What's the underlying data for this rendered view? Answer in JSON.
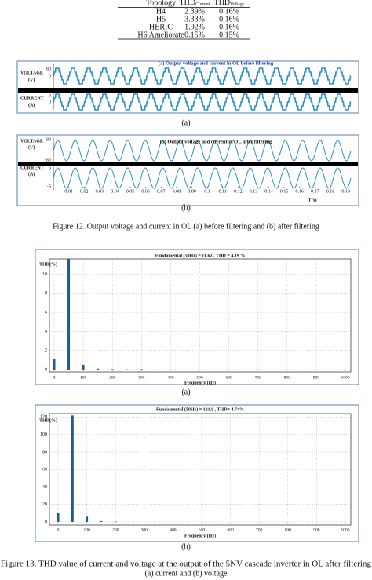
{
  "table": {
    "headers": [
      "Topology",
      {
        "text": "THD",
        "sub": "Current"
      },
      {
        "text": "THD",
        "sub": "Voltage"
      }
    ],
    "rows": [
      [
        "H4",
        "2.39%",
        "0.16%"
      ],
      [
        "H5",
        "3.33%",
        "0.16%"
      ],
      [
        "HERIC",
        "1.92%",
        "0.16%"
      ],
      [
        "H6 Ameliorate",
        "0.15%",
        "0.15%"
      ]
    ]
  },
  "figure12": {
    "panels": [
      {
        "label": "(a)",
        "title": "(a) Output voltage and current in OL before filtering",
        "voltage_label": "VOLTAGE",
        "voltage_unit": "(V)",
        "current_label": "CURRENT",
        "current_unit": "(A)",
        "voltage_ticks": [
          "80",
          "0"
        ],
        "current_ticks": [
          "5",
          "0"
        ]
      },
      {
        "label": "(b)",
        "title": "(b) Output voltage and current in OL after filtering",
        "voltage_label": "VOLTAGE",
        "voltage_unit": "(V)",
        "current_label": "CURRENT",
        "current_unit": "(A)",
        "voltage_ticks": [
          "80",
          "-80"
        ],
        "current_ticks": [
          "5",
          "-5"
        ],
        "xticks": [
          0.01,
          0.02,
          0.03,
          0.04,
          0.05,
          0.06,
          0.07,
          0.08,
          0.09,
          0.1,
          0.11,
          0.12,
          0.13,
          0.14,
          0.15,
          0.16,
          0.17,
          0.18,
          0.19
        ],
        "xlabel": "T(s)"
      }
    ],
    "caption": "Figure 12. Output voltage and current in OL (a) before filtering and (b) after filtering"
  },
  "figure13": {
    "panels": [
      {
        "label": "(a)",
        "title": "Fundamental (50Hz) = 11.62 , THD = 4.19 %",
        "ylabel": "THD(%)",
        "xlabel": "Frequency (Hz)",
        "xlim": [
          0,
          1000
        ],
        "xticks": [
          0,
          100,
          200,
          300,
          400,
          500,
          600,
          700,
          800,
          900,
          1000
        ],
        "ylim": [
          0,
          11.6
        ],
        "yticks": [
          0,
          2,
          4,
          6,
          8,
          10
        ],
        "harmonics": [
          0,
          50,
          100,
          150,
          200,
          250,
          300
        ],
        "values": [
          1.1,
          11.62,
          0.5,
          0.1,
          0.05,
          0.03,
          0.05
        ]
      },
      {
        "label": "(b)",
        "title": "Fundamental (50Hz) = 121.8 , THD= 4.74%",
        "ylabel": "THD(%)",
        "xlabel": "Frequency (Hz)",
        "xlim": [
          0,
          1000
        ],
        "xticks": [
          0,
          100,
          200,
          300,
          400,
          500,
          600,
          700,
          800,
          900,
          1000
        ],
        "ylim": [
          0,
          123
        ],
        "yticks": [
          0,
          20,
          40,
          60,
          80,
          100,
          120
        ],
        "harmonics": [
          0,
          50,
          100,
          150,
          200
        ],
        "values": [
          10,
          121.8,
          6,
          1,
          0.5
        ]
      }
    ],
    "caption": [
      "Figure 13. THD value of current and voltage at the output of the 5NV cascade inverter in OL after filtering",
      "(a) current and (b) voltage"
    ]
  }
}
